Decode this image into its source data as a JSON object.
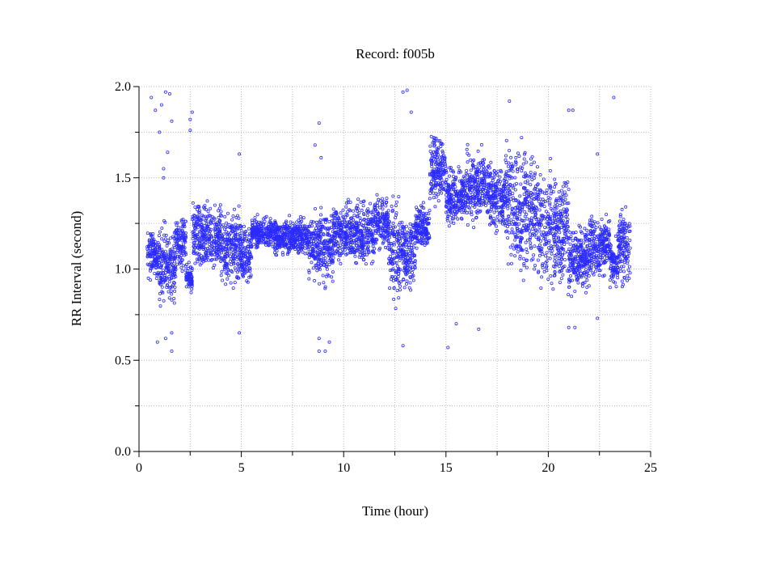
{
  "chart_data": {
    "type": "scatter",
    "title": "Record:  f005b",
    "xlabel": "Time (hour)",
    "ylabel": "RR Interval (second)",
    "xlim": [
      0,
      25
    ],
    "ylim": [
      0,
      2.0
    ],
    "xticks": [
      "0",
      "5",
      "10",
      "15",
      "20",
      "25"
    ],
    "yticks": [
      "0.0",
      "0.5",
      "1.0",
      "1.5",
      "2.0"
    ],
    "grid": true,
    "marker_color": "#2b2bff",
    "note": "dense RR series approximated as per-interval value envelopes [start_hour, end_hour, min_rr, max_rr]",
    "envelopes": [
      [
        0.4,
        1.0,
        0.9,
        1.25
      ],
      [
        1.0,
        1.8,
        0.75,
        1.3
      ],
      [
        1.8,
        2.3,
        0.95,
        1.35
      ],
      [
        2.3,
        2.6,
        0.85,
        1.05
      ],
      [
        2.6,
        4.0,
        0.95,
        1.4
      ],
      [
        4.0,
        5.0,
        0.85,
        1.4
      ],
      [
        5.0,
        5.5,
        0.85,
        1.3
      ],
      [
        5.5,
        6.5,
        1.1,
        1.3
      ],
      [
        6.5,
        7.5,
        1.05,
        1.3
      ],
      [
        7.5,
        8.3,
        1.05,
        1.3
      ],
      [
        8.3,
        9.5,
        0.85,
        1.4
      ],
      [
        9.5,
        10.5,
        1.0,
        1.4
      ],
      [
        10.5,
        11.5,
        0.95,
        1.45
      ],
      [
        11.5,
        12.2,
        1.05,
        1.45
      ],
      [
        12.2,
        12.8,
        0.75,
        1.45
      ],
      [
        12.8,
        13.5,
        0.85,
        1.35
      ],
      [
        13.5,
        14.2,
        1.05,
        1.4
      ],
      [
        14.2,
        15.0,
        1.3,
        1.78
      ],
      [
        15.0,
        16.0,
        1.2,
        1.6
      ],
      [
        16.0,
        17.0,
        1.2,
        1.7
      ],
      [
        17.0,
        17.9,
        1.15,
        1.65
      ],
      [
        17.9,
        18.2,
        0.9,
        1.85
      ],
      [
        18.2,
        19.5,
        0.85,
        1.8
      ],
      [
        19.5,
        21.0,
        0.8,
        1.65
      ],
      [
        21.0,
        22.0,
        0.8,
        1.3
      ],
      [
        22.0,
        23.0,
        0.9,
        1.35
      ],
      [
        23.0,
        23.4,
        0.85,
        1.2
      ],
      [
        23.4,
        24.0,
        0.85,
        1.4
      ]
    ],
    "outliers": [
      [
        0.6,
        1.94
      ],
      [
        0.8,
        1.87
      ],
      [
        1.0,
        1.75
      ],
      [
        1.1,
        1.9
      ],
      [
        1.3,
        1.97
      ],
      [
        1.5,
        1.96
      ],
      [
        1.6,
        1.81
      ],
      [
        1.4,
        1.64
      ],
      [
        1.2,
        1.55
      ],
      [
        1.2,
        1.5
      ],
      [
        0.9,
        0.6
      ],
      [
        1.3,
        0.62
      ],
      [
        1.6,
        0.65
      ],
      [
        1.6,
        0.55
      ],
      [
        2.5,
        1.82
      ],
      [
        2.6,
        1.86
      ],
      [
        2.5,
        1.76
      ],
      [
        4.9,
        1.63
      ],
      [
        4.9,
        0.65
      ],
      [
        8.8,
        1.8
      ],
      [
        8.6,
        1.68
      ],
      [
        8.9,
        1.61
      ],
      [
        8.8,
        0.55
      ],
      [
        9.1,
        0.55
      ],
      [
        8.8,
        0.62
      ],
      [
        9.3,
        0.6
      ],
      [
        12.9,
        1.97
      ],
      [
        13.1,
        1.98
      ],
      [
        13.3,
        1.86
      ],
      [
        12.9,
        0.58
      ],
      [
        15.1,
        0.57
      ],
      [
        15.5,
        0.7
      ],
      [
        16.6,
        0.67
      ],
      [
        18.1,
        1.92
      ],
      [
        21.0,
        1.87
      ],
      [
        21.2,
        1.87
      ],
      [
        22.4,
        1.63
      ],
      [
        22.4,
        0.73
      ],
      [
        23.2,
        1.94
      ],
      [
        21.0,
        0.68
      ],
      [
        21.3,
        0.68
      ]
    ]
  }
}
